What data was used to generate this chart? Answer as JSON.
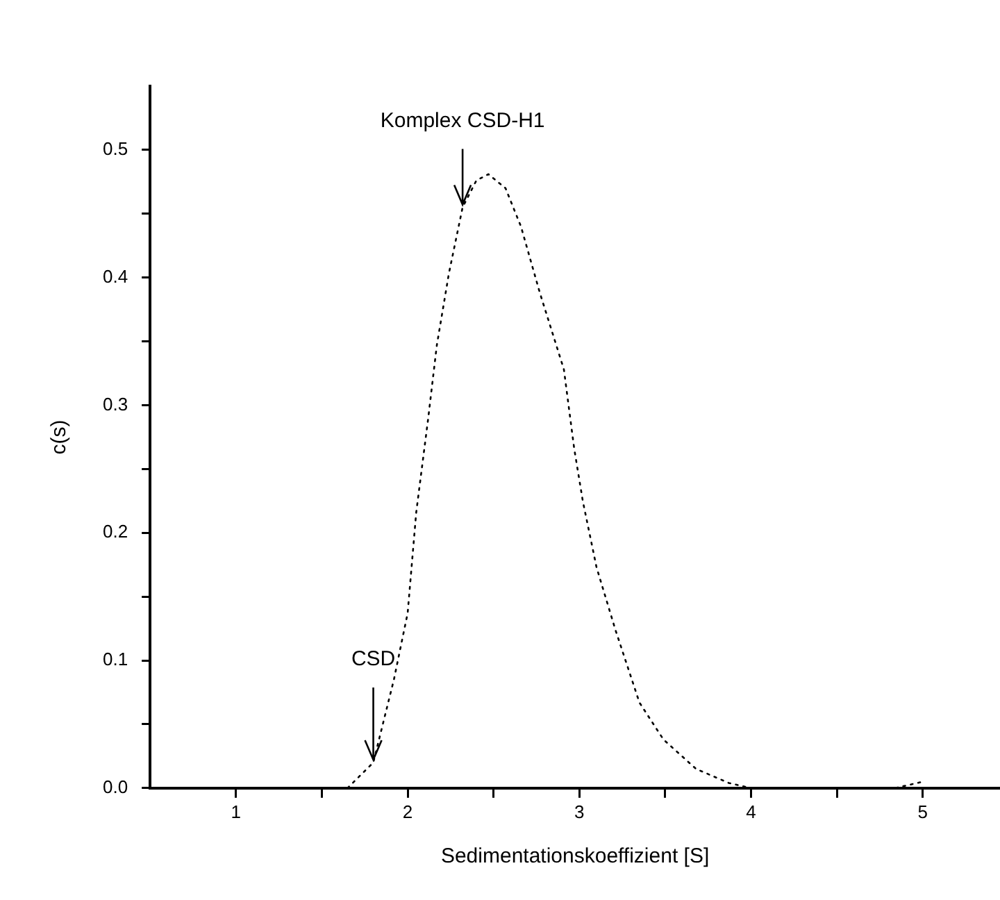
{
  "chart_data": {
    "type": "line",
    "xlabel": "Sedimentationskoeffizient [S]",
    "ylabel": "c(s)",
    "x": [
      1.65,
      1.8,
      1.92,
      2.0,
      2.05,
      2.12,
      2.17,
      2.24,
      2.32,
      2.4,
      2.47,
      2.57,
      2.66,
      2.77,
      2.91,
      2.97,
      3.02,
      3.1,
      3.21,
      3.35,
      3.49,
      3.68,
      3.87,
      4.0,
      4.84,
      5.0
    ],
    "series": [
      {
        "color": "#000000",
        "line_style": "dotted",
        "values": [
          0,
          0.02,
          0.085,
          0.137,
          0.216,
          0.29,
          0.347,
          0.403,
          0.455,
          0.476,
          0.481,
          0.47,
          0.44,
          0.388,
          0.328,
          0.266,
          0.225,
          0.173,
          0.124,
          0.067,
          0.038,
          0.015,
          0.004,
          0,
          0,
          0.005
        ]
      }
    ],
    "xlim": [
      0.5,
      5.45
    ],
    "xticks": [
      1,
      {
        "value": 1.5,
        "label": null
      },
      2,
      {
        "value": 2.5,
        "label": null
      },
      3,
      {
        "value": 3.5,
        "label": null
      },
      4,
      {
        "value": 4.5,
        "label": null
      },
      5
    ],
    "ylim": [
      0,
      0.55
    ],
    "yticks": [
      {
        "value": 0,
        "label": "0.0"
      },
      {
        "value": 0.05,
        "label": null
      },
      0.1,
      {
        "value": 0.15,
        "label": null
      },
      0.2,
      {
        "value": 0.25,
        "label": null
      },
      0.3,
      {
        "value": 0.35,
        "label": null
      },
      0.4,
      {
        "value": 0.45,
        "label": null
      },
      0.5
    ],
    "grid": false,
    "legend": false,
    "marker": "none",
    "annotations": [
      {
        "text": "Komplex CSD-H1",
        "x": 2.32,
        "y": 0.455
      },
      {
        "text": "CSD",
        "x": 1.8,
        "y": 0.02
      }
    ]
  }
}
